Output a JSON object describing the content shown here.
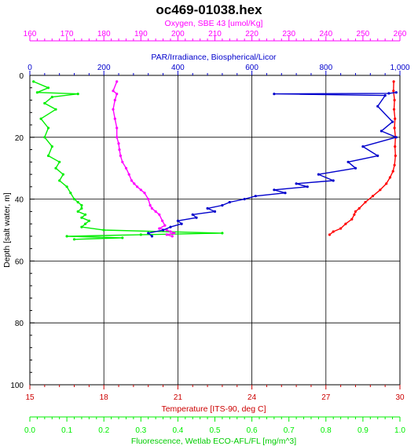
{
  "chart_data": {
    "type": "line",
    "title": "oc469-01038.hex",
    "y_axis": {
      "label": "Depth [salt water, m]",
      "range": [
        0,
        100
      ],
      "ticks": [
        0,
        20,
        40,
        60,
        80,
        100
      ],
      "inverted": true,
      "color": "#000000"
    },
    "x_axes": [
      {
        "id": "oxygen",
        "position": "top",
        "label": "Oxygen, SBE 43 [umol/Kg]",
        "range": [
          160,
          260
        ],
        "ticks": [
          160,
          170,
          180,
          190,
          200,
          210,
          220,
          230,
          240,
          250,
          260
        ],
        "color": "#ff00ff"
      },
      {
        "id": "par",
        "position": "top",
        "label": "PAR/Irradiance, Biospherical/Licor",
        "range": [
          0,
          1000
        ],
        "ticks": [
          0,
          200,
          400,
          600,
          800,
          1000
        ],
        "tick_labels": [
          "0",
          "200",
          "400",
          "600",
          "800",
          "1,000"
        ],
        "color": "#0000cc"
      },
      {
        "id": "temperature",
        "position": "bottom",
        "label": "Temperature [ITS-90, deg C]",
        "range": [
          15,
          30
        ],
        "ticks": [
          15,
          18,
          21,
          24,
          27,
          30
        ],
        "color": "#cc0000"
      },
      {
        "id": "fluorescence",
        "position": "bottom",
        "label": "Fluorescence, Wetlab ECO-AFL/FL [mg/m^3]",
        "range": [
          0,
          1
        ],
        "ticks": [
          0.0,
          0.1,
          0.2,
          0.3,
          0.4,
          0.5,
          0.6,
          0.7,
          0.8,
          0.9,
          1.0
        ],
        "tick_labels": [
          "0.0",
          "0.1",
          "0.2",
          "0.3",
          "0.4",
          "0.5",
          "0.6",
          "0.7",
          "0.8",
          "0.9",
          "1.0"
        ],
        "color": "#00ee00"
      }
    ],
    "grid": true,
    "series": [
      {
        "axis": "temperature",
        "color": "#ff0000",
        "x": [
          29.75,
          29.74,
          29.78,
          29.76,
          29.8,
          29.78,
          29.82,
          29.8,
          29.82,
          29.78,
          29.72,
          29.6,
          29.45,
          29.2,
          28.9,
          28.6,
          28.35,
          28.2,
          28.15,
          28.05,
          27.8,
          27.6,
          27.3,
          27.15
        ],
        "y": [
          2,
          5,
          8,
          11,
          14,
          17,
          20,
          23,
          26,
          29,
          31,
          33,
          35,
          37,
          39,
          41,
          43,
          44,
          45,
          46.5,
          48,
          49.5,
          50.5,
          51.5
        ]
      },
      {
        "axis": "fluorescence",
        "color": "#00ee00",
        "x": [
          0.01,
          0.05,
          0.02,
          0.13,
          0.06,
          0.04,
          0.07,
          0.03,
          0.05,
          0.04,
          0.06,
          0.05,
          0.08,
          0.07,
          0.09,
          0.08,
          0.1,
          0.11,
          0.12,
          0.13,
          0.14,
          0.14,
          0.13,
          0.15,
          0.14,
          0.16,
          0.15,
          0.14,
          0.2,
          0.52,
          0.3,
          0.1,
          0.25,
          0.12
        ],
        "y": [
          2,
          4,
          5.5,
          6,
          7,
          9,
          11,
          14,
          17,
          20,
          23,
          26,
          28,
          30,
          32,
          34,
          36,
          38,
          40,
          41,
          42,
          43,
          44,
          45,
          46,
          47,
          48,
          49,
          50,
          51,
          51.5,
          52,
          52.5,
          53
        ]
      },
      {
        "axis": "oxygen",
        "color": "#ff00ff",
        "x": [
          183.5,
          182.5,
          183.5,
          183,
          182.5,
          183,
          183.5,
          183.5,
          184,
          184.2,
          184.5,
          185,
          186,
          186.8,
          187.5,
          188.2,
          189,
          190,
          191,
          192,
          192.5,
          193,
          194,
          195,
          195.8,
          196.5,
          195,
          197,
          198,
          199,
          197,
          198.5
        ],
        "y": [
          2,
          5,
          6,
          8,
          11,
          14,
          17,
          20,
          22,
          24,
          26,
          28,
          30,
          32,
          34,
          35,
          36,
          37,
          38,
          40,
          42,
          43,
          44,
          45,
          47,
          48.5,
          49.5,
          50,
          50.5,
          51,
          51.5,
          52
        ]
      },
      {
        "axis": "par",
        "color": "#0000cc",
        "x": [
          990,
          970,
          660,
          960,
          940,
          980,
          950,
          990,
          900,
          940,
          860,
          880,
          780,
          820,
          720,
          750,
          660,
          690,
          610,
          580,
          540,
          520,
          480,
          500,
          440,
          450,
          400,
          410,
          380,
          360,
          320,
          330
        ],
        "y": [
          5.5,
          5.8,
          6,
          6.5,
          10,
          15,
          18,
          20,
          23,
          26,
          28,
          30,
          32,
          34,
          35,
          36,
          37,
          38,
          39,
          40,
          41,
          42,
          43,
          44,
          45,
          46,
          47,
          48,
          49,
          50,
          51,
          52
        ]
      }
    ]
  }
}
